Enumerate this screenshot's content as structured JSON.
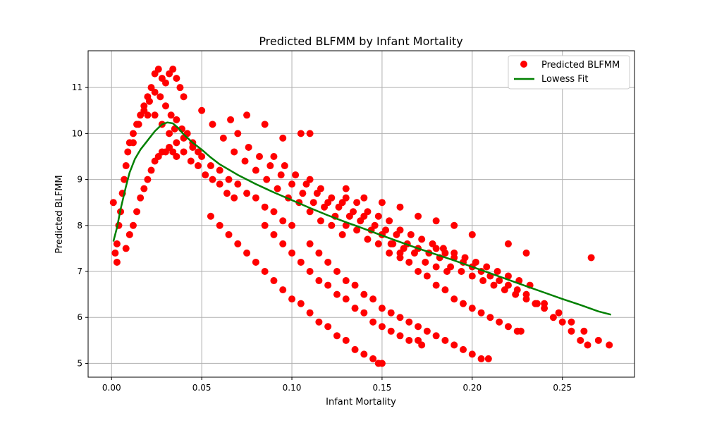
{
  "chart_data": {
    "type": "scatter",
    "title": "Predicted BLFMM by Infant Mortality",
    "xlabel": "Infant Mortality",
    "ylabel": "Predicted BLFMM",
    "xlim": [
      -0.013,
      0.29
    ],
    "ylim": [
      4.7,
      11.8
    ],
    "xticks": [
      0.0,
      0.05,
      0.1,
      0.15,
      0.2,
      0.25
    ],
    "xtick_labels": [
      "0.00",
      "0.05",
      "0.10",
      "0.15",
      "0.20",
      "0.25"
    ],
    "yticks": [
      5,
      6,
      7,
      8,
      9,
      10,
      11
    ],
    "ytick_labels": [
      "5",
      "6",
      "7",
      "8",
      "9",
      "10",
      "11"
    ],
    "grid": true,
    "legend_position": "top-right",
    "colors": {
      "scatter": "#ff0000",
      "line": "#008000"
    },
    "series": [
      {
        "name": "Predicted BLFMM",
        "kind": "scatter",
        "x": [
          0.001,
          0.002,
          0.003,
          0.003,
          0.004,
          0.005,
          0.006,
          0.007,
          0.008,
          0.009,
          0.01,
          0.012,
          0.014,
          0.016,
          0.018,
          0.02,
          0.022,
          0.024,
          0.026,
          0.028,
          0.03,
          0.032,
          0.034,
          0.036,
          0.038,
          0.04,
          0.008,
          0.01,
          0.012,
          0.014,
          0.016,
          0.018,
          0.02,
          0.022,
          0.024,
          0.026,
          0.028,
          0.03,
          0.032,
          0.034,
          0.036,
          0.012,
          0.015,
          0.018,
          0.021,
          0.024,
          0.027,
          0.03,
          0.033,
          0.036,
          0.039,
          0.042,
          0.045,
          0.048,
          0.02,
          0.024,
          0.028,
          0.032,
          0.036,
          0.04,
          0.044,
          0.048,
          0.052,
          0.056,
          0.06,
          0.064,
          0.068,
          0.035,
          0.04,
          0.045,
          0.05,
          0.055,
          0.06,
          0.065,
          0.07,
          0.075,
          0.08,
          0.085,
          0.09,
          0.095,
          0.1,
          0.05,
          0.056,
          0.062,
          0.068,
          0.074,
          0.08,
          0.086,
          0.092,
          0.098,
          0.104,
          0.11,
          0.116,
          0.122,
          0.128,
          0.07,
          0.076,
          0.082,
          0.088,
          0.094,
          0.1,
          0.106,
          0.112,
          0.118,
          0.124,
          0.13,
          0.136,
          0.142,
          0.148,
          0.154,
          0.16,
          0.09,
          0.096,
          0.102,
          0.108,
          0.114,
          0.12,
          0.126,
          0.132,
          0.138,
          0.144,
          0.15,
          0.156,
          0.162,
          0.168,
          0.174,
          0.18,
          0.186,
          0.11,
          0.116,
          0.122,
          0.128,
          0.134,
          0.14,
          0.146,
          0.152,
          0.158,
          0.164,
          0.17,
          0.176,
          0.182,
          0.188,
          0.194,
          0.2,
          0.206,
          0.212,
          0.218,
          0.224,
          0.23,
          0.236,
          0.13,
          0.136,
          0.142,
          0.148,
          0.154,
          0.16,
          0.166,
          0.172,
          0.178,
          0.184,
          0.19,
          0.196,
          0.202,
          0.208,
          0.214,
          0.22,
          0.226,
          0.232,
          0.24,
          0.248,
          0.255,
          0.262,
          0.27,
          0.276,
          0.055,
          0.06,
          0.065,
          0.07,
          0.075,
          0.08,
          0.085,
          0.09,
          0.095,
          0.1,
          0.105,
          0.11,
          0.115,
          0.12,
          0.125,
          0.13,
          0.135,
          0.14,
          0.145,
          0.148,
          0.15,
          0.085,
          0.09,
          0.095,
          0.1,
          0.105,
          0.11,
          0.115,
          0.12,
          0.125,
          0.13,
          0.135,
          0.14,
          0.145,
          0.15,
          0.155,
          0.16,
          0.165,
          0.17,
          0.172,
          0.11,
          0.115,
          0.12,
          0.125,
          0.13,
          0.135,
          0.14,
          0.145,
          0.15,
          0.155,
          0.16,
          0.165,
          0.17,
          0.175,
          0.18,
          0.185,
          0.19,
          0.195,
          0.2,
          0.205,
          0.209,
          0.15,
          0.155,
          0.16,
          0.165,
          0.17,
          0.175,
          0.18,
          0.185,
          0.19,
          0.195,
          0.2,
          0.205,
          0.21,
          0.215,
          0.22,
          0.225,
          0.227,
          0.18,
          0.185,
          0.19,
          0.195,
          0.2,
          0.205,
          0.21,
          0.215,
          0.22,
          0.225,
          0.23,
          0.235,
          0.24,
          0.245,
          0.25,
          0.255,
          0.26,
          0.264,
          0.066,
          0.075,
          0.085,
          0.095,
          0.105,
          0.11,
          0.13,
          0.14,
          0.15,
          0.16,
          0.17,
          0.18,
          0.19,
          0.2,
          0.22,
          0.23,
          0.266
        ],
        "y": [
          8.5,
          7.4,
          7.2,
          7.6,
          8.0,
          8.3,
          8.7,
          9.0,
          9.3,
          9.6,
          9.8,
          10.0,
          10.2,
          10.4,
          10.6,
          10.8,
          11.0,
          11.3,
          11.4,
          11.2,
          11.1,
          11.3,
          11.4,
          11.2,
          11.0,
          10.8,
          7.5,
          7.8,
          8.0,
          8.3,
          8.6,
          8.8,
          9.0,
          9.2,
          9.4,
          9.5,
          9.6,
          9.6,
          9.7,
          9.6,
          9.5,
          9.8,
          10.2,
          10.5,
          10.7,
          10.9,
          10.8,
          10.6,
          10.4,
          10.3,
          10.1,
          10.0,
          9.8,
          9.6,
          10.4,
          10.4,
          10.2,
          10.0,
          9.8,
          9.6,
          9.4,
          9.3,
          9.1,
          9.0,
          8.9,
          8.7,
          8.6,
          10.1,
          9.9,
          9.7,
          9.5,
          9.3,
          9.2,
          9.0,
          8.9,
          8.7,
          8.6,
          8.4,
          8.3,
          8.1,
          8.0,
          10.5,
          10.2,
          9.9,
          9.6,
          9.4,
          9.2,
          9.0,
          8.8,
          8.6,
          8.5,
          8.3,
          8.1,
          8.0,
          7.8,
          10.0,
          9.7,
          9.5,
          9.3,
          9.1,
          8.9,
          8.7,
          8.5,
          8.4,
          8.2,
          8.0,
          7.9,
          7.7,
          7.6,
          7.4,
          7.3,
          9.5,
          9.3,
          9.1,
          8.9,
          8.7,
          8.5,
          8.4,
          8.2,
          8.1,
          7.9,
          7.8,
          7.6,
          7.5,
          7.4,
          7.2,
          7.1,
          7.0,
          9.0,
          8.8,
          8.6,
          8.5,
          8.3,
          8.2,
          8.0,
          7.9,
          7.8,
          7.6,
          7.5,
          7.4,
          7.3,
          7.1,
          7.0,
          6.9,
          6.8,
          6.7,
          6.6,
          6.5,
          6.4,
          6.3,
          8.6,
          8.5,
          8.3,
          8.2,
          8.1,
          7.9,
          7.8,
          7.7,
          7.6,
          7.5,
          7.4,
          7.3,
          7.2,
          7.1,
          7.0,
          6.9,
          6.8,
          6.7,
          6.3,
          6.1,
          5.9,
          5.7,
          5.5,
          5.4,
          8.2,
          8.0,
          7.8,
          7.6,
          7.4,
          7.2,
          7.0,
          6.8,
          6.6,
          6.4,
          6.3,
          6.1,
          5.9,
          5.8,
          5.6,
          5.5,
          5.3,
          5.2,
          5.1,
          5.0,
          5.0,
          8.0,
          7.8,
          7.6,
          7.4,
          7.2,
          7.0,
          6.8,
          6.7,
          6.5,
          6.4,
          6.2,
          6.1,
          5.9,
          5.8,
          5.7,
          5.6,
          5.5,
          5.5,
          5.4,
          7.6,
          7.4,
          7.2,
          7.0,
          6.8,
          6.7,
          6.5,
          6.4,
          6.2,
          6.1,
          6.0,
          5.9,
          5.8,
          5.7,
          5.6,
          5.5,
          5.4,
          5.3,
          5.2,
          5.1,
          5.1,
          7.8,
          7.6,
          7.4,
          7.2,
          7.0,
          6.9,
          6.7,
          6.6,
          6.4,
          6.3,
          6.2,
          6.1,
          6.0,
          5.9,
          5.8,
          5.7,
          5.7,
          7.5,
          7.4,
          7.3,
          7.2,
          7.1,
          7.0,
          6.9,
          6.8,
          6.7,
          6.6,
          6.5,
          6.3,
          6.2,
          6.0,
          5.9,
          5.7,
          5.5,
          5.4,
          10.3,
          10.4,
          10.2,
          9.9,
          10.0,
          10.0,
          8.8,
          8.6,
          8.5,
          8.4,
          8.2,
          8.1,
          8.0,
          7.8,
          7.6,
          7.4,
          7.3
        ]
      },
      {
        "name": "Lowess Fit",
        "kind": "line",
        "x": [
          0.001,
          0.003,
          0.005,
          0.008,
          0.01,
          0.013,
          0.016,
          0.02,
          0.024,
          0.028,
          0.031,
          0.034,
          0.037,
          0.04,
          0.045,
          0.05,
          0.055,
          0.06,
          0.07,
          0.08,
          0.09,
          0.1,
          0.11,
          0.12,
          0.13,
          0.14,
          0.15,
          0.16,
          0.17,
          0.18,
          0.19,
          0.2,
          0.21,
          0.22,
          0.23,
          0.24,
          0.25,
          0.26,
          0.27,
          0.277
        ],
        "y": [
          7.65,
          7.95,
          8.35,
          8.85,
          9.15,
          9.45,
          9.65,
          9.85,
          10.05,
          10.2,
          10.24,
          10.22,
          10.12,
          9.98,
          9.8,
          9.65,
          9.48,
          9.33,
          9.1,
          8.9,
          8.72,
          8.55,
          8.38,
          8.22,
          8.07,
          7.93,
          7.78,
          7.64,
          7.5,
          7.37,
          7.24,
          7.1,
          6.96,
          6.82,
          6.68,
          6.54,
          6.4,
          6.27,
          6.13,
          6.06
        ]
      }
    ]
  }
}
